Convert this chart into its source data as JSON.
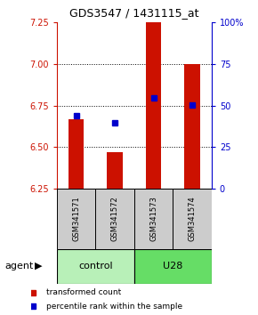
{
  "title": "GDS3547 / 1431115_at",
  "samples": [
    "GSM341571",
    "GSM341572",
    "GSM341573",
    "GSM341574"
  ],
  "red_bar_values": [
    6.67,
    6.47,
    7.25,
    7.0
  ],
  "blue_dot_values": [
    6.69,
    6.645,
    6.795,
    6.755
  ],
  "bar_bottom": 6.25,
  "ylim_left": [
    6.25,
    7.25
  ],
  "ylim_right": [
    0,
    100
  ],
  "yticks_left": [
    6.25,
    6.5,
    6.75,
    7.0,
    7.25
  ],
  "yticks_right": [
    0,
    25,
    50,
    75,
    100
  ],
  "ytick_labels_right": [
    "0",
    "25",
    "50",
    "75",
    "100%"
  ],
  "group_labels": [
    "control",
    "U28"
  ],
  "ctrl_color": "#b8f0b8",
  "u28_color": "#66dd66",
  "legend_items": [
    {
      "color": "#cc1100",
      "label": "transformed count"
    },
    {
      "color": "#0000cc",
      "label": "percentile rank within the sample"
    }
  ],
  "red_color": "#cc1100",
  "blue_color": "#0000cc",
  "bar_width": 0.4,
  "gray_color": "#cccccc",
  "agent_label": "agent"
}
